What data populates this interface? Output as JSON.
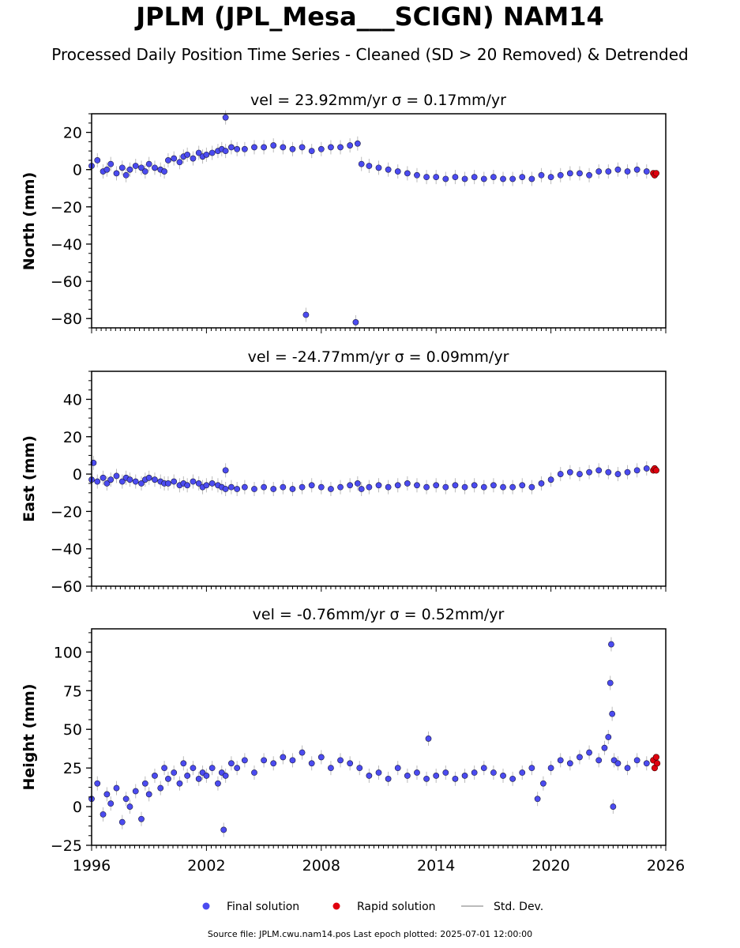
{
  "header": {
    "title": "JPLM (JPL_Mesa___SCIGN) NAM14",
    "subtitle": "Processed Daily Position Time Series - Cleaned (SD > 20 Removed) & Detrended"
  },
  "legend": {
    "final_label": "Final solution",
    "rapid_label": "Rapid solution",
    "std_label": "Std. Dev."
  },
  "colors": {
    "final": "#4b4bf0",
    "rapid": "#e0000e",
    "std": "#bbbbbb",
    "edge": "#1a1a40"
  },
  "footer": {
    "source": "Source file: JPLM.cwu.nam14.pos  Last epoch plotted: 2025-07-01 12:00:00"
  },
  "chart_data": [
    {
      "type": "scatter",
      "component": "North",
      "title": "vel = 23.92mm/yr   σ = 0.17mm/yr",
      "ylabel": "North (mm)",
      "xlim": [
        1996,
        2026
      ],
      "ylim": [
        -85,
        30
      ],
      "yticks": [
        20,
        0,
        -20,
        -40,
        -60,
        -80
      ],
      "xticks": [
        1996,
        2002,
        2008,
        2014,
        2020,
        2026
      ],
      "xtick_labels": [],
      "final_solution": {
        "x": [
          1996.0,
          1996.3,
          1996.6,
          1996.8,
          1997.0,
          1997.3,
          1997.6,
          1997.8,
          1998.0,
          1998.3,
          1998.6,
          1998.8,
          1999.0,
          1999.3,
          1999.6,
          1999.8,
          2000.0,
          2000.3,
          2000.6,
          2000.8,
          2001.0,
          2001.3,
          2001.6,
          2001.8,
          2002.0,
          2002.3,
          2002.6,
          2002.8,
          2003.0,
          2003.3,
          2003.6,
          2004.0,
          2004.5,
          2005.0,
          2005.5,
          2006.0,
          2006.5,
          2007.0,
          2007.5,
          2008.0,
          2008.5,
          2009.0,
          2009.5,
          2009.9,
          2010.1,
          2010.5,
          2011.0,
          2011.5,
          2012.0,
          2012.5,
          2013.0,
          2013.5,
          2014.0,
          2014.5,
          2015.0,
          2015.5,
          2016.0,
          2016.5,
          2017.0,
          2017.5,
          2018.0,
          2018.5,
          2019.0,
          2019.5,
          2020.0,
          2020.5,
          2021.0,
          2021.5,
          2022.0,
          2022.5,
          2023.0,
          2023.5,
          2024.0,
          2024.5,
          2025.0,
          2003.0,
          2007.2,
          2009.8
        ],
        "y": [
          2,
          5,
          -1,
          0,
          3,
          -2,
          1,
          -3,
          0,
          2,
          1,
          -1,
          3,
          1,
          0,
          -1,
          5,
          6,
          4,
          7,
          8,
          6,
          9,
          7,
          8,
          9,
          10,
          11,
          10,
          12,
          11,
          11,
          12,
          12,
          13,
          12,
          11,
          12,
          10,
          11,
          12,
          12,
          13,
          14,
          3,
          2,
          1,
          0,
          -1,
          -2,
          -3,
          -4,
          -4,
          -5,
          -4,
          -5,
          -4,
          -5,
          -4,
          -5,
          -5,
          -4,
          -5,
          -3,
          -4,
          -3,
          -2,
          -2,
          -3,
          -1,
          -1,
          0,
          -1,
          0,
          -1,
          28,
          -78,
          -82
        ]
      },
      "rapid_solution": {
        "x": [
          2025.35,
          2025.42,
          2025.5
        ],
        "y": [
          -2,
          -3,
          -2
        ]
      }
    },
    {
      "type": "scatter",
      "component": "East",
      "title": "vel = -24.77mm/yr   σ = 0.09mm/yr",
      "ylabel": "East (mm)",
      "xlim": [
        1996,
        2026
      ],
      "ylim": [
        -60,
        55
      ],
      "yticks": [
        40,
        20,
        0,
        -20,
        -40,
        -60
      ],
      "xticks": [
        1996,
        2002,
        2008,
        2014,
        2020,
        2026
      ],
      "xtick_labels": [],
      "final_solution": {
        "x": [
          1996.0,
          1996.3,
          1996.6,
          1996.8,
          1997.0,
          1997.3,
          1997.6,
          1997.8,
          1998.0,
          1998.3,
          1998.6,
          1998.8,
          1999.0,
          1999.3,
          1999.6,
          1999.8,
          2000.0,
          2000.3,
          2000.6,
          2000.8,
          2001.0,
          2001.3,
          2001.6,
          2001.8,
          2002.0,
          2002.3,
          2002.6,
          2002.8,
          2003.0,
          2003.3,
          2003.6,
          2004.0,
          2004.5,
          2005.0,
          2005.5,
          2006.0,
          2006.5,
          2007.0,
          2007.5,
          2008.0,
          2008.5,
          2009.0,
          2009.5,
          2009.9,
          2010.1,
          2010.5,
          2011.0,
          2011.5,
          2012.0,
          2012.5,
          2013.0,
          2013.5,
          2014.0,
          2014.5,
          2015.0,
          2015.5,
          2016.0,
          2016.5,
          2017.0,
          2017.5,
          2018.0,
          2018.5,
          2019.0,
          2019.5,
          2020.0,
          2020.5,
          2021.0,
          2021.5,
          2022.0,
          2022.5,
          2023.0,
          2023.5,
          2024.0,
          2024.5,
          2025.0,
          1996.1,
          2003.0
        ],
        "y": [
          -3,
          -4,
          -2,
          -5,
          -3,
          -1,
          -4,
          -2,
          -3,
          -4,
          -5,
          -3,
          -2,
          -3,
          -4,
          -5,
          -5,
          -4,
          -6,
          -5,
          -6,
          -4,
          -5,
          -7,
          -6,
          -5,
          -6,
          -7,
          -8,
          -7,
          -8,
          -7,
          -8,
          -7,
          -8,
          -7,
          -8,
          -7,
          -6,
          -7,
          -8,
          -7,
          -6,
          -5,
          -8,
          -7,
          -6,
          -7,
          -6,
          -5,
          -6,
          -7,
          -6,
          -7,
          -6,
          -7,
          -6,
          -7,
          -6,
          -7,
          -7,
          -6,
          -7,
          -5,
          -3,
          0,
          1,
          0,
          1,
          2,
          1,
          0,
          1,
          2,
          3,
          6,
          2
        ]
      },
      "rapid_solution": {
        "x": [
          2025.35,
          2025.42,
          2025.5
        ],
        "y": [
          2,
          3,
          2
        ]
      }
    },
    {
      "type": "scatter",
      "component": "Height",
      "title": "vel = -0.76mm/yr   σ = 0.52mm/yr",
      "ylabel": "Height (mm)",
      "xlim": [
        1996,
        2026
      ],
      "ylim": [
        -25,
        115
      ],
      "yticks": [
        100,
        75,
        50,
        25,
        0,
        -25
      ],
      "xticks": [
        1996,
        2002,
        2008,
        2014,
        2020,
        2026
      ],
      "xtick_labels": [
        "1996",
        "2002",
        "2008",
        "2014",
        "2020",
        "2026"
      ],
      "final_solution": {
        "x": [
          1996.0,
          1996.3,
          1996.6,
          1996.8,
          1997.0,
          1997.3,
          1997.6,
          1997.8,
          1998.0,
          1998.3,
          1998.6,
          1998.8,
          1999.0,
          1999.3,
          1999.6,
          1999.8,
          2000.0,
          2000.3,
          2000.6,
          2000.8,
          2001.0,
          2001.3,
          2001.6,
          2001.8,
          2002.0,
          2002.3,
          2002.6,
          2002.8,
          2003.0,
          2003.3,
          2003.6,
          2004.0,
          2004.5,
          2005.0,
          2005.5,
          2006.0,
          2006.5,
          2007.0,
          2007.5,
          2008.0,
          2008.5,
          2009.0,
          2009.5,
          2010.0,
          2010.5,
          2011.0,
          2011.5,
          2012.0,
          2012.5,
          2013.0,
          2013.5,
          2014.0,
          2014.5,
          2015.0,
          2015.5,
          2016.0,
          2016.5,
          2017.0,
          2017.5,
          2018.0,
          2018.5,
          2019.0,
          2019.3,
          2019.6,
          2020.0,
          2020.5,
          2021.0,
          2021.5,
          2022.0,
          2022.5,
          2022.8,
          2023.0,
          2023.1,
          2023.15,
          2023.2,
          2023.25,
          2023.3,
          2023.5,
          2024.0,
          2024.5,
          2025.0,
          2002.9,
          2013.6
        ],
        "y": [
          5,
          15,
          -5,
          8,
          2,
          12,
          -10,
          5,
          0,
          10,
          -8,
          15,
          8,
          20,
          12,
          25,
          18,
          22,
          15,
          28,
          20,
          25,
          18,
          22,
          20,
          25,
          15,
          22,
          20,
          28,
          25,
          30,
          22,
          30,
          28,
          32,
          30,
          35,
          28,
          32,
          25,
          30,
          28,
          25,
          20,
          22,
          18,
          25,
          20,
          22,
          18,
          20,
          22,
          18,
          20,
          22,
          25,
          22,
          20,
          18,
          22,
          25,
          5,
          15,
          25,
          30,
          28,
          32,
          35,
          30,
          38,
          45,
          80,
          105,
          60,
          0,
          30,
          28,
          25,
          30,
          28,
          -15,
          44
        ]
      },
      "rapid_solution": {
        "x": [
          2025.35,
          2025.42,
          2025.5,
          2025.55
        ],
        "y": [
          30,
          25,
          32,
          28
        ]
      }
    }
  ]
}
